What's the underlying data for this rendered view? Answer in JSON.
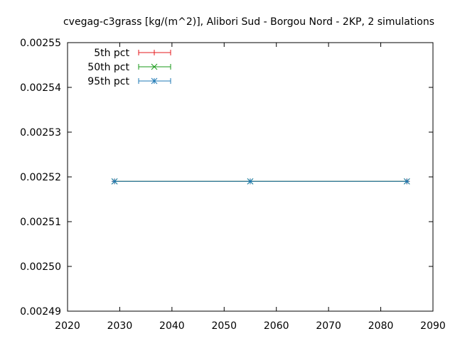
{
  "chart_data": {
    "type": "line",
    "title": "cvegag-c3grass [kg/(m^2)], Alibori Sud - Borgou Nord - 2KP, 2 simulations",
    "xlabel": "",
    "ylabel": "",
    "xlim": [
      2020,
      2090
    ],
    "ylim": [
      0.00249,
      0.00255
    ],
    "x_ticks": [
      "2020",
      "2030",
      "2040",
      "2050",
      "2060",
      "2070",
      "2080",
      "2090"
    ],
    "y_ticks": [
      "0.00249",
      "0.00250",
      "0.00251",
      "0.00252",
      "0.00253",
      "0.00254",
      "0.00255"
    ],
    "grid": false,
    "legend_position": "top-left",
    "series": [
      {
        "name": "5th pct",
        "color": "#e41a1c",
        "marker": "plus",
        "x": [
          2029,
          2055,
          2085
        ],
        "y": [
          0.002519,
          0.002519,
          0.002519
        ]
      },
      {
        "name": "50th pct",
        "color": "#1a9a1a",
        "marker": "cross",
        "x": [
          2029,
          2055,
          2085
        ],
        "y": [
          0.002519,
          0.002519,
          0.002519
        ]
      },
      {
        "name": "95th pct",
        "color": "#1f78b4",
        "marker": "star",
        "x": [
          2029,
          2055,
          2085
        ],
        "y": [
          0.002519,
          0.002519,
          0.002519
        ]
      }
    ]
  }
}
